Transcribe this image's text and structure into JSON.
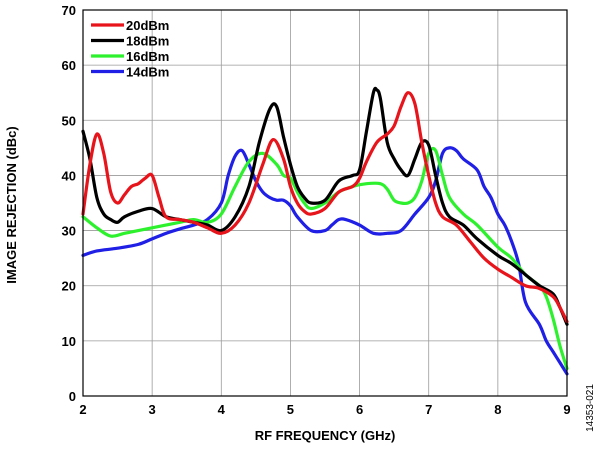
{
  "chart_data": {
    "type": "line",
    "title": "",
    "xlabel": "RF FREQUENCY (GHz)",
    "ylabel": "IMAGE REJECTION (dBc)",
    "xlim": [
      2,
      9
    ],
    "ylim": [
      0,
      70
    ],
    "xticks": [
      2,
      3,
      4,
      5,
      6,
      7,
      8,
      9
    ],
    "yticks": [
      0,
      10,
      20,
      30,
      40,
      50,
      60,
      70
    ],
    "grid": true,
    "legend_position": "top-left",
    "figure_id": "14353-021",
    "series": [
      {
        "name": "20dBm",
        "color": "#e8141b",
        "points": [
          [
            2.0,
            33
          ],
          [
            2.1,
            42
          ],
          [
            2.2,
            47.5
          ],
          [
            2.3,
            44
          ],
          [
            2.4,
            37
          ],
          [
            2.5,
            35
          ],
          [
            2.6,
            36.5
          ],
          [
            2.7,
            38
          ],
          [
            2.8,
            38.5
          ],
          [
            2.9,
            39.5
          ],
          [
            3.0,
            40
          ],
          [
            3.1,
            36
          ],
          [
            3.2,
            32.5
          ],
          [
            3.4,
            32
          ],
          [
            3.6,
            31.5
          ],
          [
            3.8,
            30.5
          ],
          [
            4.0,
            29.5
          ],
          [
            4.2,
            31
          ],
          [
            4.4,
            35
          ],
          [
            4.6,
            42
          ],
          [
            4.75,
            46.5
          ],
          [
            4.9,
            43
          ],
          [
            5.0,
            38
          ],
          [
            5.1,
            35
          ],
          [
            5.2,
            33.5
          ],
          [
            5.3,
            33
          ],
          [
            5.5,
            34
          ],
          [
            5.7,
            37
          ],
          [
            5.9,
            38
          ],
          [
            6.0,
            39.5
          ],
          [
            6.1,
            42.5
          ],
          [
            6.25,
            46
          ],
          [
            6.4,
            47.5
          ],
          [
            6.5,
            49
          ],
          [
            6.6,
            52.5
          ],
          [
            6.7,
            55
          ],
          [
            6.8,
            53
          ],
          [
            6.9,
            46
          ],
          [
            7.0,
            40
          ],
          [
            7.1,
            35
          ],
          [
            7.2,
            32.5
          ],
          [
            7.4,
            31
          ],
          [
            7.6,
            28
          ],
          [
            7.8,
            25
          ],
          [
            8.0,
            23
          ],
          [
            8.2,
            21.5
          ],
          [
            8.4,
            20
          ],
          [
            8.6,
            19.5
          ],
          [
            8.8,
            18
          ],
          [
            8.9,
            16
          ],
          [
            9.0,
            13.5
          ]
        ]
      },
      {
        "name": "18dBm",
        "color": "#000000",
        "points": [
          [
            2.0,
            48
          ],
          [
            2.1,
            43
          ],
          [
            2.2,
            36
          ],
          [
            2.3,
            33
          ],
          [
            2.4,
            32
          ],
          [
            2.5,
            31.5
          ],
          [
            2.6,
            32.5
          ],
          [
            2.8,
            33.5
          ],
          [
            3.0,
            34
          ],
          [
            3.2,
            32.5
          ],
          [
            3.4,
            32
          ],
          [
            3.6,
            31.5
          ],
          [
            3.8,
            31
          ],
          [
            4.0,
            30
          ],
          [
            4.2,
            32.5
          ],
          [
            4.4,
            38
          ],
          [
            4.55,
            46
          ],
          [
            4.7,
            52
          ],
          [
            4.8,
            52.5
          ],
          [
            4.9,
            47
          ],
          [
            5.0,
            42
          ],
          [
            5.1,
            38
          ],
          [
            5.2,
            36
          ],
          [
            5.3,
            35
          ],
          [
            5.5,
            35.5
          ],
          [
            5.7,
            39
          ],
          [
            5.9,
            40
          ],
          [
            6.0,
            41
          ],
          [
            6.1,
            48
          ],
          [
            6.2,
            55
          ],
          [
            6.25,
            55.5
          ],
          [
            6.3,
            54
          ],
          [
            6.4,
            46
          ],
          [
            6.5,
            43
          ],
          [
            6.6,
            41
          ],
          [
            6.7,
            40
          ],
          [
            6.8,
            43
          ],
          [
            6.9,
            46
          ],
          [
            7.0,
            45.5
          ],
          [
            7.1,
            40
          ],
          [
            7.2,
            35
          ],
          [
            7.3,
            32.5
          ],
          [
            7.5,
            31
          ],
          [
            7.7,
            28.5
          ],
          [
            8.0,
            25.5
          ],
          [
            8.2,
            24
          ],
          [
            8.4,
            22
          ],
          [
            8.6,
            20
          ],
          [
            8.8,
            18.5
          ],
          [
            8.9,
            16
          ],
          [
            9.0,
            13
          ]
        ]
      },
      {
        "name": "16dBm",
        "color": "#2ef12e",
        "points": [
          [
            2.0,
            32.5
          ],
          [
            2.2,
            30.5
          ],
          [
            2.4,
            29
          ],
          [
            2.6,
            29.5
          ],
          [
            2.8,
            30
          ],
          [
            3.0,
            30.5
          ],
          [
            3.2,
            31
          ],
          [
            3.4,
            31.5
          ],
          [
            3.6,
            32
          ],
          [
            3.8,
            31.5
          ],
          [
            4.0,
            33
          ],
          [
            4.2,
            38
          ],
          [
            4.4,
            42.5
          ],
          [
            4.6,
            44
          ],
          [
            4.8,
            42
          ],
          [
            4.9,
            40
          ],
          [
            5.0,
            39.5
          ],
          [
            5.1,
            37
          ],
          [
            5.2,
            35
          ],
          [
            5.3,
            34
          ],
          [
            5.5,
            35
          ],
          [
            5.7,
            37
          ],
          [
            5.9,
            38
          ],
          [
            6.1,
            38.5
          ],
          [
            6.3,
            38.5
          ],
          [
            6.4,
            37.5
          ],
          [
            6.5,
            35.5
          ],
          [
            6.6,
            35
          ],
          [
            6.7,
            35
          ],
          [
            6.8,
            36
          ],
          [
            6.9,
            39
          ],
          [
            7.0,
            44
          ],
          [
            7.1,
            44.5
          ],
          [
            7.2,
            40
          ],
          [
            7.3,
            36
          ],
          [
            7.5,
            33
          ],
          [
            7.7,
            31
          ],
          [
            8.0,
            27
          ],
          [
            8.2,
            25
          ],
          [
            8.4,
            22
          ],
          [
            8.6,
            20
          ],
          [
            8.7,
            18
          ],
          [
            8.8,
            14
          ],
          [
            8.9,
            9
          ],
          [
            9.0,
            5
          ]
        ]
      },
      {
        "name": "14dBm",
        "color": "#1f1fe6",
        "points": [
          [
            2.0,
            25.5
          ],
          [
            2.2,
            26.3
          ],
          [
            2.5,
            26.8
          ],
          [
            2.8,
            27.5
          ],
          [
            3.0,
            28.5
          ],
          [
            3.2,
            29.5
          ],
          [
            3.4,
            30.3
          ],
          [
            3.6,
            31
          ],
          [
            3.8,
            32
          ],
          [
            4.0,
            35
          ],
          [
            4.1,
            40
          ],
          [
            4.2,
            43.5
          ],
          [
            4.3,
            44.5
          ],
          [
            4.4,
            42
          ],
          [
            4.5,
            39
          ],
          [
            4.6,
            37
          ],
          [
            4.7,
            36
          ],
          [
            4.8,
            35.5
          ],
          [
            4.9,
            35.5
          ],
          [
            5.0,
            34.5
          ],
          [
            5.1,
            32.5
          ],
          [
            5.3,
            30
          ],
          [
            5.5,
            30
          ],
          [
            5.6,
            31
          ],
          [
            5.7,
            32
          ],
          [
            5.8,
            32
          ],
          [
            6.0,
            31
          ],
          [
            6.2,
            29.5
          ],
          [
            6.4,
            29.5
          ],
          [
            6.6,
            30
          ],
          [
            6.8,
            33
          ],
          [
            7.0,
            36
          ],
          [
            7.1,
            39
          ],
          [
            7.2,
            44
          ],
          [
            7.3,
            45
          ],
          [
            7.4,
            44.5
          ],
          [
            7.5,
            43
          ],
          [
            7.7,
            41
          ],
          [
            7.8,
            38
          ],
          [
            7.9,
            36
          ],
          [
            8.0,
            33
          ],
          [
            8.1,
            31
          ],
          [
            8.2,
            28
          ],
          [
            8.3,
            24
          ],
          [
            8.4,
            17
          ],
          [
            8.6,
            13
          ],
          [
            8.7,
            10
          ],
          [
            8.8,
            8
          ],
          [
            8.9,
            6
          ],
          [
            9.0,
            4
          ]
        ]
      }
    ]
  }
}
